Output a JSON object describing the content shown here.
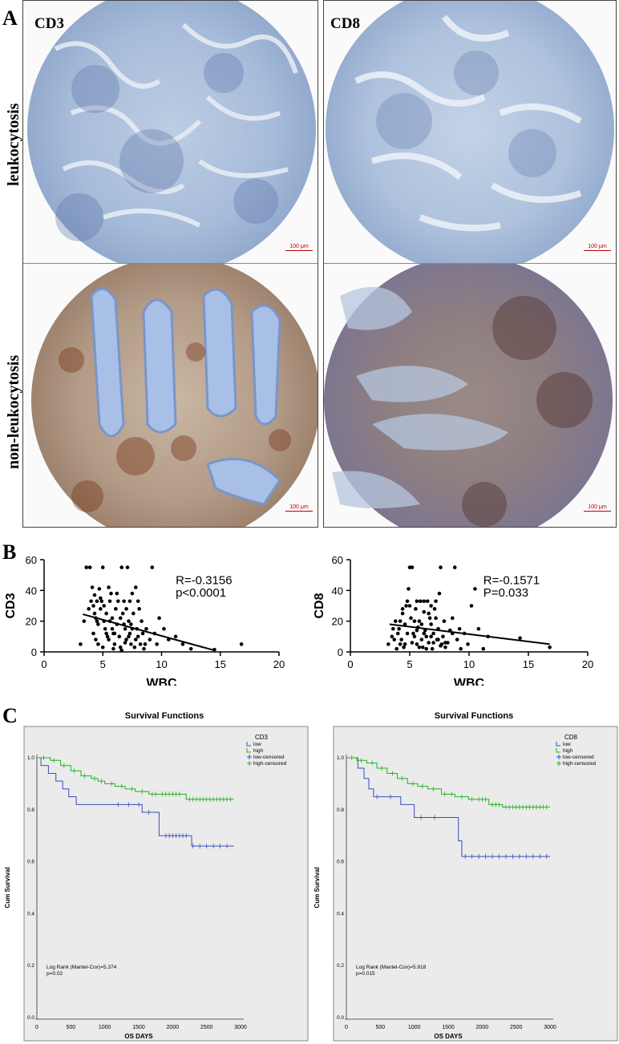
{
  "panel_labels": {
    "a": "A",
    "b": "B",
    "c": "C"
  },
  "panel_a": {
    "markers": [
      "CD3",
      "CD8"
    ],
    "rows": [
      "leukocytosis",
      "non-leukocytosis"
    ],
    "scale_bar": "100 μm"
  },
  "chart_data": [
    {
      "type": "scatter",
      "xlabel": "WBC",
      "ylabel": "CD3",
      "xlim": [
        0,
        20
      ],
      "ylim": [
        0,
        60
      ],
      "xticks": [
        0,
        5,
        10,
        15,
        20
      ],
      "yticks": [
        0,
        20,
        40,
        60
      ],
      "annotation": [
        "R=-0.3156",
        "p<0.0001"
      ],
      "fit_line": {
        "x": [
          3.3,
          14.5
        ],
        "y": [
          24.5,
          1.0
        ]
      },
      "points": [
        [
          3.1,
          5
        ],
        [
          3.4,
          20
        ],
        [
          3.6,
          55
        ],
        [
          3.9,
          55
        ],
        [
          4.0,
          33
        ],
        [
          4.1,
          42
        ],
        [
          4.2,
          30
        ],
        [
          4.3,
          25
        ],
        [
          4.4,
          22
        ],
        [
          4.5,
          20
        ],
        [
          4.6,
          18
        ],
        [
          4.7,
          41
        ],
        [
          4.8,
          28
        ],
        [
          5.0,
          55
        ],
        [
          5.1,
          20
        ],
        [
          5.2,
          15
        ],
        [
          5.3,
          12
        ],
        [
          5.4,
          10
        ],
        [
          5.5,
          8
        ],
        [
          5.6,
          33
        ],
        [
          5.7,
          38
        ],
        [
          5.8,
          22
        ],
        [
          5.9,
          12
        ],
        [
          6.0,
          5
        ],
        [
          6.1,
          28
        ],
        [
          6.2,
          18
        ],
        [
          6.4,
          10
        ],
        [
          6.5,
          3
        ],
        [
          6.6,
          55
        ],
        [
          6.7,
          25
        ],
        [
          6.8,
          33
        ],
        [
          6.9,
          15
        ],
        [
          7.0,
          8
        ],
        [
          7.1,
          55
        ],
        [
          7.2,
          20
        ],
        [
          7.3,
          12
        ],
        [
          7.4,
          5
        ],
        [
          7.5,
          38
        ],
        [
          7.6,
          25
        ],
        [
          7.8,
          42
        ],
        [
          7.9,
          15
        ],
        [
          8.0,
          10
        ],
        [
          8.1,
          28
        ],
        [
          8.2,
          5
        ],
        [
          8.3,
          20
        ],
        [
          8.5,
          2
        ],
        [
          8.7,
          15
        ],
        [
          9.0,
          8
        ],
        [
          9.2,
          55
        ],
        [
          9.4,
          12
        ],
        [
          9.6,
          5
        ],
        [
          9.8,
          22
        ],
        [
          10.2,
          15
        ],
        [
          10.6,
          8
        ],
        [
          11.2,
          10
        ],
        [
          11.8,
          5
        ],
        [
          12.5,
          2
        ],
        [
          14.5,
          1.5
        ],
        [
          16.8,
          5
        ],
        [
          4.2,
          12
        ],
        [
          4.4,
          8
        ],
        [
          4.6,
          5
        ],
        [
          4.9,
          33
        ],
        [
          5.1,
          30
        ],
        [
          5.3,
          25
        ],
        [
          5.6,
          20
        ],
        [
          5.8,
          15
        ],
        [
          6.0,
          12
        ],
        [
          6.3,
          33
        ],
        [
          6.5,
          22
        ],
        [
          6.8,
          18
        ],
        [
          7.0,
          28
        ],
        [
          7.2,
          10
        ],
        [
          7.5,
          15
        ],
        [
          7.8,
          8
        ],
        [
          8.0,
          33
        ],
        [
          8.4,
          12
        ],
        [
          5.5,
          42
        ],
        [
          4.8,
          35
        ],
        [
          6.2,
          38
        ],
        [
          7.3,
          33
        ],
        [
          5.0,
          3
        ],
        [
          5.9,
          2
        ],
        [
          6.6,
          1
        ],
        [
          7.7,
          3
        ],
        [
          4.3,
          37
        ],
        [
          4.5,
          33
        ],
        [
          3.8,
          28
        ],
        [
          6.9,
          6
        ],
        [
          7.4,
          18
        ],
        [
          8.6,
          5
        ]
      ]
    },
    {
      "type": "scatter",
      "xlabel": "WBC",
      "ylabel": "CD8",
      "xlim": [
        0,
        20
      ],
      "ylim": [
        0,
        60
      ],
      "xticks": [
        0,
        5,
        10,
        15,
        20
      ],
      "yticks": [
        0,
        20,
        40,
        60
      ],
      "annotation": [
        "R=-0.1571",
        "P=0.033"
      ],
      "fit_line": {
        "x": [
          3.3,
          16.8
        ],
        "y": [
          18.0,
          5.0
        ]
      },
      "points": [
        [
          3.2,
          5
        ],
        [
          3.5,
          10
        ],
        [
          3.7,
          8
        ],
        [
          3.9,
          2
        ],
        [
          4.0,
          12
        ],
        [
          4.1,
          15
        ],
        [
          4.2,
          20
        ],
        [
          4.3,
          8
        ],
        [
          4.4,
          25
        ],
        [
          4.5,
          3
        ],
        [
          4.6,
          18
        ],
        [
          4.7,
          30
        ],
        [
          4.8,
          33
        ],
        [
          4.9,
          41
        ],
        [
          5.0,
          55
        ],
        [
          5.1,
          22
        ],
        [
          5.2,
          55
        ],
        [
          5.3,
          12
        ],
        [
          5.4,
          10
        ],
        [
          5.5,
          28
        ],
        [
          5.6,
          5
        ],
        [
          5.7,
          16
        ],
        [
          5.8,
          20
        ],
        [
          5.9,
          33
        ],
        [
          6.0,
          8
        ],
        [
          6.1,
          3
        ],
        [
          6.2,
          26
        ],
        [
          6.3,
          14
        ],
        [
          6.4,
          10
        ],
        [
          6.5,
          33
        ],
        [
          6.6,
          6
        ],
        [
          6.7,
          22
        ],
        [
          6.8,
          18
        ],
        [
          6.9,
          2
        ],
        [
          7.0,
          12
        ],
        [
          7.1,
          28
        ],
        [
          7.2,
          33
        ],
        [
          7.3,
          8
        ],
        [
          7.4,
          15
        ],
        [
          7.5,
          38
        ],
        [
          7.6,
          55
        ],
        [
          7.7,
          5
        ],
        [
          7.8,
          10
        ],
        [
          7.9,
          20
        ],
        [
          8.0,
          3
        ],
        [
          8.2,
          6
        ],
        [
          8.4,
          14
        ],
        [
          8.6,
          12
        ],
        [
          8.8,
          55
        ],
        [
          9.0,
          8
        ],
        [
          9.3,
          2
        ],
        [
          9.6,
          12
        ],
        [
          9.9,
          5
        ],
        [
          10.2,
          30
        ],
        [
          10.5,
          41
        ],
        [
          10.8,
          15
        ],
        [
          11.2,
          2
        ],
        [
          11.6,
          10
        ],
        [
          14.3,
          9
        ],
        [
          16.8,
          3
        ],
        [
          4.6,
          5
        ],
        [
          5.2,
          6
        ],
        [
          5.8,
          3
        ],
        [
          6.4,
          2
        ],
        [
          7.0,
          6
        ],
        [
          7.6,
          4
        ],
        [
          5.4,
          20
        ],
        [
          6.0,
          18
        ],
        [
          6.6,
          25
        ],
        [
          7.2,
          22
        ],
        [
          4.8,
          12
        ],
        [
          5.6,
          14
        ],
        [
          6.2,
          12
        ],
        [
          6.8,
          10
        ],
        [
          7.4,
          8
        ],
        [
          8.0,
          6
        ],
        [
          4.4,
          28
        ],
        [
          5.0,
          30
        ],
        [
          5.6,
          33
        ],
        [
          6.2,
          33
        ],
        [
          6.8,
          30
        ],
        [
          3.6,
          15
        ],
        [
          3.8,
          20
        ],
        [
          4.2,
          5
        ],
        [
          9.2,
          15
        ],
        [
          8.6,
          22
        ]
      ]
    },
    {
      "type": "line",
      "title": "Survival Functions",
      "xlabel": "OS DAYS",
      "ylabel": "Cum Survival",
      "xlim": [
        0,
        3000
      ],
      "ylim": [
        0,
        1.0
      ],
      "xticks": [
        0,
        500,
        1000,
        1500,
        2000,
        2500,
        3000
      ],
      "yticks": [
        "0.0",
        "0.2",
        "0.4",
        "0.6",
        "0.8",
        "1.0"
      ],
      "legend_title": "CD3",
      "legend": [
        "low",
        "high",
        "low-censored",
        "high-censored"
      ],
      "colors": {
        "low": "#3b4db8",
        "high": "#1db31d"
      },
      "stats": [
        "Log Rank (Mantel-Cox)=5.374",
        "p=0.02"
      ],
      "series": [
        {
          "name": "low",
          "steps": [
            [
              0,
              1.0
            ],
            [
              60,
              0.97
            ],
            [
              170,
              0.94
            ],
            [
              280,
              0.91
            ],
            [
              380,
              0.88
            ],
            [
              470,
              0.85
            ],
            [
              580,
              0.82
            ],
            [
              1550,
              0.79
            ],
            [
              1800,
              0.7
            ],
            [
              2280,
              0.66
            ],
            [
              2900,
              0.66
            ]
          ],
          "censored": [
            1200,
            1350,
            1500,
            1650,
            1900,
            1950,
            2000,
            2050,
            2100,
            2150,
            2200,
            2300,
            2400,
            2500,
            2600,
            2700,
            2800
          ]
        },
        {
          "name": "high",
          "steps": [
            [
              0,
              1.0
            ],
            [
              200,
              0.99
            ],
            [
              350,
              0.97
            ],
            [
              500,
              0.95
            ],
            [
              650,
              0.93
            ],
            [
              800,
              0.92
            ],
            [
              900,
              0.91
            ],
            [
              1000,
              0.9
            ],
            [
              1150,
              0.89
            ],
            [
              1300,
              0.88
            ],
            [
              1450,
              0.87
            ],
            [
              1650,
              0.86
            ],
            [
              2200,
              0.84
            ],
            [
              2900,
              0.84
            ]
          ],
          "censored": [
            100,
            250,
            400,
            550,
            700,
            850,
            950,
            1100,
            1250,
            1400,
            1550,
            1700,
            1750,
            1850,
            1900,
            1950,
            2000,
            2050,
            2100,
            2250,
            2300,
            2350,
            2400,
            2450,
            2500,
            2550,
            2600,
            2650,
            2700,
            2750,
            2800,
            2850
          ]
        }
      ]
    },
    {
      "type": "line",
      "title": "Survival Functions",
      "xlabel": "OS DAYS",
      "ylabel": "Cum Survival",
      "xlim": [
        0,
        3000
      ],
      "ylim": [
        0,
        1.0
      ],
      "xticks": [
        0,
        500,
        1000,
        1500,
        2000,
        2500,
        3000
      ],
      "yticks": [
        "0.0",
        "0.2",
        "0.4",
        "0.6",
        "0.8",
        "1.0"
      ],
      "legend_title": "CD8",
      "legend": [
        "low",
        "high",
        "low-censored",
        "high-censored"
      ],
      "colors": {
        "low": "#3b4db8",
        "high": "#1db31d"
      },
      "stats": [
        "Log Rank (Mantel-Cox)=5.918",
        "p=0.015"
      ],
      "series": [
        {
          "name": "low",
          "steps": [
            [
              0,
              1.0
            ],
            [
              170,
              0.96
            ],
            [
              260,
              0.92
            ],
            [
              330,
              0.88
            ],
            [
              400,
              0.85
            ],
            [
              800,
              0.82
            ],
            [
              1000,
              0.77
            ],
            [
              1650,
              0.68
            ],
            [
              1700,
              0.62
            ],
            [
              3000,
              0.62
            ]
          ],
          "censored": [
            450,
            650,
            1100,
            1300,
            1750,
            1850,
            1950,
            2050,
            2150,
            2250,
            2350,
            2450,
            2550,
            2650,
            2750,
            2850,
            2950
          ]
        },
        {
          "name": "high",
          "steps": [
            [
              0,
              1.0
            ],
            [
              150,
              0.99
            ],
            [
              300,
              0.98
            ],
            [
              450,
              0.96
            ],
            [
              600,
              0.94
            ],
            [
              750,
              0.92
            ],
            [
              900,
              0.9
            ],
            [
              1050,
              0.89
            ],
            [
              1200,
              0.88
            ],
            [
              1400,
              0.86
            ],
            [
              1600,
              0.85
            ],
            [
              1800,
              0.84
            ],
            [
              2100,
              0.82
            ],
            [
              2300,
              0.81
            ],
            [
              3000,
              0.81
            ]
          ],
          "censored": [
            80,
            220,
            380,
            520,
            680,
            820,
            980,
            1120,
            1280,
            1450,
            1550,
            1700,
            1850,
            1950,
            2000,
            2050,
            2150,
            2200,
            2250,
            2350,
            2400,
            2450,
            2500,
            2550,
            2600,
            2650,
            2700,
            2750,
            2800,
            2850,
            2900,
            2950
          ]
        }
      ]
    }
  ]
}
